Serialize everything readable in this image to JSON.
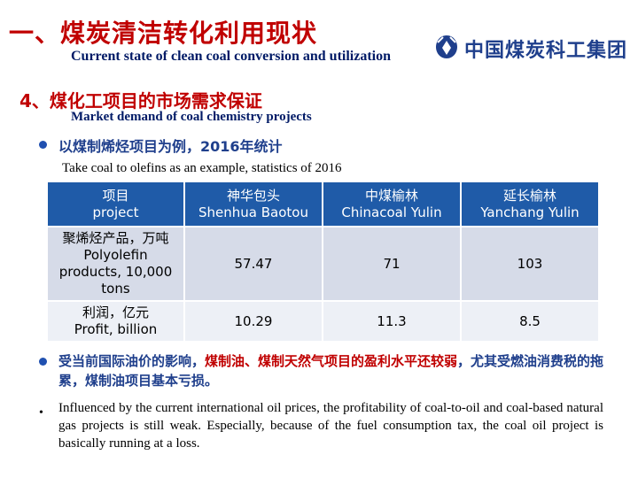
{
  "header": {
    "title": "一、煤炭清洁转化利用现状",
    "title_en": "Current state of clean coal conversion and utilization",
    "logo_text": "中国煤炭科工集团"
  },
  "section": {
    "title": "4、煤化工项目的市场需求保证",
    "title_en": "Market demand of coal chemistry projects"
  },
  "bullet1": {
    "text": "以煤制烯烃项目为例，2016年统计",
    "text_en": "Take coal to olefins as an example, statistics of 2016"
  },
  "table": {
    "headers": [
      {
        "zh": "项目",
        "en": "project"
      },
      {
        "zh": "神华包头",
        "en": "Shenhua Baotou"
      },
      {
        "zh": "中煤榆林",
        "en": "Chinacoal Yulin"
      },
      {
        "zh": "延长榆林",
        "en": "Yanchang Yulin"
      }
    ],
    "rows": [
      {
        "label_zh": "聚烯烃产品，万吨",
        "label_en": "Polyolefin products, 10,000 tons",
        "values": [
          "57.47",
          "71",
          "103"
        ]
      },
      {
        "label_zh": "利润，亿元",
        "label_en": "Profit, billion",
        "values": [
          "10.29",
          "11.3",
          "8.5"
        ]
      }
    ]
  },
  "bullet2": {
    "part1": "受当前国际油价的影响，",
    "part2_red": "煤制油、煤制天然气项目的盈利水平还较弱",
    "part3": "，尤其受燃油消费税的拖累，煤制油项目基本亏损。"
  },
  "bullet3": {
    "marker": "•",
    "text": "Influenced by the current international oil prices, the profitability of coal-to-oil and coal-based natural gas projects is still weak. Especially, because of the fuel consumption tax, the coal oil project is basically running at a loss."
  },
  "colors": {
    "title_red": "#c00000",
    "navy": "#1f3f8c",
    "table_header": "#1f5ba8",
    "row_dark": "#d6dbe8",
    "row_light": "#edf0f6"
  },
  "icons": {
    "logo": "company-logo-icon",
    "bullet": "bullet-disc-icon"
  }
}
